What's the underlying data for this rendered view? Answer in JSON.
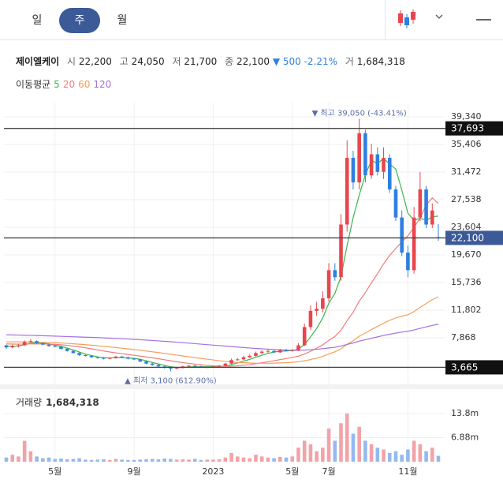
{
  "tabs": [
    "일",
    "주",
    "월"
  ],
  "active_tab": 1,
  "header": {
    "name": "제이엘케이",
    "fields": [
      {
        "label": "시",
        "value": "22,200"
      },
      {
        "label": "고",
        "value": "24,050"
      },
      {
        "label": "저",
        "value": "21,700"
      },
      {
        "label": "종",
        "value": "22,100"
      }
    ],
    "change": "▼ 500 -2.21%",
    "volume_label": "거",
    "volume": "1,684,318"
  },
  "chart_data": {
    "type": "candlestick",
    "categories": [
      null,
      null,
      null,
      null,
      null,
      null,
      null,
      null,
      "5월",
      null,
      null,
      null,
      null,
      null,
      null,
      null,
      null,
      null,
      null,
      null,
      null,
      "9월",
      null,
      null,
      null,
      null,
      null,
      null,
      null,
      null,
      null,
      null,
      null,
      null,
      "2023",
      null,
      null,
      null,
      null,
      null,
      null,
      null,
      null,
      null,
      null,
      null,
      null,
      "5월",
      null,
      null,
      null,
      null,
      null,
      "7월",
      null,
      null,
      null,
      null,
      null,
      null,
      null,
      null,
      null,
      null,
      null,
      null,
      "11월",
      null,
      null,
      null,
      null,
      null
    ],
    "open": [
      6800,
      6500,
      6700,
      6800,
      7300,
      7400,
      7100,
      6900,
      6700,
      6600,
      6300,
      6000,
      5700,
      5400,
      5300,
      5100,
      5000,
      4900,
      5000,
      5200,
      5100,
      4900,
      4800,
      4500,
      4200,
      4000,
      3800,
      3600,
      3500,
      3600,
      3800,
      3900,
      3800,
      3700,
      3700,
      3800,
      3900,
      4200,
      4700,
      4800,
      5100,
      5300,
      5700,
      5900,
      6000,
      5800,
      6100,
      6000,
      6100,
      6800,
      9400,
      11700,
      12000,
      13500,
      17500,
      16500,
      24000,
      33500,
      30000,
      37000,
      31000,
      34000,
      31500,
      33500,
      29000,
      25000,
      20000,
      17500,
      25000,
      29000,
      24000,
      22200
    ],
    "high": [
      6900,
      6900,
      7000,
      7500,
      7700,
      7500,
      7200,
      7000,
      6800,
      6700,
      6400,
      6100,
      5800,
      5500,
      5400,
      5200,
      5100,
      5100,
      5300,
      5300,
      5200,
      5000,
      4900,
      4600,
      4300,
      4100,
      3900,
      3700,
      3700,
      3900,
      4000,
      4000,
      3900,
      3800,
      3900,
      4000,
      4300,
      4900,
      5000,
      5300,
      5500,
      5900,
      6100,
      6300,
      6100,
      6300,
      6300,
      6300,
      7100,
      9900,
      12500,
      13000,
      14500,
      18500,
      18500,
      25500,
      36000,
      34500,
      39050,
      37500,
      35500,
      35000,
      35000,
      34000,
      29500,
      26000,
      21000,
      26500,
      31500,
      29500,
      27000,
      24050
    ],
    "low": [
      6300,
      6400,
      6500,
      6700,
      7200,
      7000,
      6800,
      6600,
      6500,
      6200,
      5900,
      5600,
      5300,
      5200,
      5000,
      4900,
      4800,
      4800,
      4900,
      5000,
      4800,
      4700,
      4400,
      4100,
      3900,
      3700,
      3500,
      3100,
      3400,
      3500,
      3700,
      3700,
      3600,
      3600,
      3600,
      3700,
      3800,
      4100,
      4600,
      4700,
      5000,
      5200,
      5600,
      5700,
      5700,
      5700,
      5900,
      5900,
      6000,
      6700,
      9000,
      11000,
      11500,
      13000,
      16000,
      16000,
      23000,
      29000,
      29000,
      30000,
      30500,
      31000,
      30500,
      28500,
      24500,
      19500,
      16500,
      17000,
      24500,
      23500,
      23500,
      21700
    ],
    "close": [
      6500,
      6700,
      6800,
      7300,
      7400,
      7100,
      6900,
      6700,
      6600,
      6300,
      6000,
      5700,
      5400,
      5300,
      5100,
      5000,
      4900,
      5000,
      5200,
      5100,
      4900,
      4800,
      4500,
      4200,
      4000,
      3800,
      3600,
      3500,
      3600,
      3800,
      3900,
      3800,
      3700,
      3700,
      3800,
      3900,
      4200,
      4700,
      4800,
      5100,
      5300,
      5700,
      5900,
      6000,
      5800,
      6100,
      6000,
      6100,
      6800,
      9400,
      11700,
      12000,
      13500,
      17500,
      16500,
      24000,
      33500,
      30000,
      37000,
      31000,
      34000,
      31500,
      33500,
      29000,
      25000,
      20000,
      17500,
      25000,
      29000,
      24000,
      26000,
      22100
    ],
    "up_color": "#e8464e",
    "down_color": "#2f7fe0",
    "ylim": [
      2030,
      40240
    ],
    "yticks": [
      {
        "value": 39340,
        "label": "39,340"
      },
      {
        "value": 35406,
        "label": "35,406"
      },
      {
        "value": 31472,
        "label": "31,472"
      },
      {
        "value": 27538,
        "label": "27,538"
      },
      {
        "value": 23604,
        "label": "23,604"
      },
      {
        "value": 19670,
        "label": "19,670"
      },
      {
        "value": 15736,
        "label": "15,736"
      },
      {
        "value": 11802,
        "label": "11,802"
      },
      {
        "value": 7868,
        "label": "7,868"
      }
    ],
    "grid": true,
    "price_lines": [
      {
        "value": 37693,
        "label": "37,693",
        "color": "#111111"
      },
      {
        "value": 22100,
        "label": "22,100",
        "color": "#3d5a98"
      },
      {
        "value": 3665,
        "label": "3,665",
        "color": "#111111"
      }
    ],
    "high_annotation": "▼ 최고 39,050 (-43.41%)",
    "low_annotation": "▲ 최저 3,100 (612.90%)",
    "moving_averages": {
      "label": "이동평균",
      "series": [
        {
          "name": "5",
          "color": "#3bb54a",
          "values": [
            6700,
            6650,
            6700,
            6900,
            7100,
            7150,
            7100,
            7000,
            6800,
            6650,
            6400,
            6150,
            5850,
            5550,
            5350,
            5150,
            5050,
            5000,
            5050,
            5050,
            5000,
            4950,
            4800,
            4600,
            4350,
            4150,
            3950,
            3750,
            3650,
            3650,
            3700,
            3750,
            3750,
            3750,
            3750,
            3800,
            3850,
            4050,
            4300,
            4550,
            4800,
            5100,
            5400,
            5650,
            5850,
            5950,
            6000,
            6050,
            6250,
            6900,
            8000,
            9200,
            10700,
            12800,
            14200,
            16600,
            21000,
            25000,
            28200,
            31100,
            33100,
            32700,
            33400,
            32600,
            31900,
            28900,
            25600,
            24600,
            24900,
            24600,
            25100,
            25200
          ]
        },
        {
          "name": "20",
          "color": "#f07a7a",
          "values": [
            7000,
            6980,
            6970,
            6980,
            7000,
            7000,
            6990,
            6970,
            6930,
            6880,
            6800,
            6700,
            6580,
            6450,
            6300,
            6150,
            5990,
            5850,
            5730,
            5620,
            5500,
            5380,
            5270,
            5150,
            5020,
            4890,
            4750,
            4600,
            4460,
            4340,
            4230,
            4130,
            4040,
            3950,
            3880,
            3830,
            3820,
            3840,
            3880,
            3960,
            4060,
            4180,
            4320,
            4470,
            4610,
            4770,
            4920,
            5070,
            5260,
            5560,
            5950,
            6400,
            6870,
            7500,
            8060,
            8950,
            10300,
            11500,
            13100,
            14300,
            15700,
            17000,
            18400,
            19600,
            20600,
            21500,
            22400,
            23600,
            24900,
            26800,
            27800,
            27000
          ]
        },
        {
          "name": "60",
          "color": "#f5a05a",
          "values": [
            7300,
            7300,
            7300,
            7280,
            7260,
            7240,
            7220,
            7200,
            7170,
            7130,
            7080,
            7020,
            6960,
            6890,
            6820,
            6740,
            6660,
            6570,
            6480,
            6390,
            6300,
            6200,
            6100,
            5990,
            5880,
            5770,
            5650,
            5530,
            5410,
            5290,
            5170,
            5050,
            4940,
            4830,
            4720,
            4610,
            4510,
            4430,
            4370,
            4320,
            4280,
            4250,
            4240,
            4240,
            4260,
            4290,
            4330,
            4380,
            4450,
            4600,
            4780,
            4980,
            5220,
            5560,
            5870,
            6300,
            6950,
            7450,
            8100,
            8550,
            9050,
            9500,
            9950,
            10350,
            10700,
            10950,
            11150,
            11600,
            12200,
            12750,
            13300,
            13700
          ]
        },
        {
          "name": "120",
          "color": "#a66fe0",
          "values": [
            8300,
            8280,
            8260,
            8240,
            8220,
            8200,
            8170,
            8140,
            8110,
            8080,
            8050,
            8020,
            7990,
            7960,
            7930,
            7900,
            7860,
            7820,
            7780,
            7740,
            7700,
            7650,
            7600,
            7550,
            7490,
            7430,
            7370,
            7310,
            7250,
            7180,
            7110,
            7040,
            6970,
            6900,
            6830,
            6760,
            6690,
            6620,
            6550,
            6480,
            6420,
            6360,
            6300,
            6250,
            6200,
            6160,
            6120,
            6090,
            6080,
            6120,
            6180,
            6240,
            6320,
            6430,
            6520,
            6700,
            6930,
            7130,
            7400,
            7600,
            7800,
            8000,
            8200,
            8380,
            8540,
            8680,
            8800,
            8990,
            9220,
            9430,
            9640,
            9800
          ]
        }
      ]
    },
    "volume": {
      "label": "거래량",
      "latest": "1,684,318",
      "values": [
        1200000,
        2000000,
        1500000,
        6000000,
        3000000,
        1500000,
        1000000,
        1200000,
        800000,
        900000,
        700000,
        800000,
        1000000,
        600000,
        500000,
        600000,
        700000,
        500000,
        800000,
        600000,
        500000,
        500000,
        600000,
        700000,
        800000,
        700000,
        900000,
        800000,
        600000,
        700000,
        600000,
        800000,
        500000,
        600000,
        600000,
        700000,
        1200000,
        2500000,
        1500000,
        1200000,
        1000000,
        2000000,
        1500000,
        1200000,
        1000000,
        1400000,
        1200000,
        1500000,
        4000000,
        6000000,
        5000000,
        3000000,
        4000000,
        9500000,
        6000000,
        11000000,
        13800000,
        8000000,
        10000000,
        6000000,
        5000000,
        4000000,
        3500000,
        2500000,
        3000000,
        2000000,
        3500000,
        6000000,
        5000000,
        3000000,
        4000000,
        1684318
      ],
      "up_color": "#f2a3a7",
      "down_color": "#93b9ef",
      "ylim": [
        0,
        19200000
      ],
      "yticks": [
        {
          "value": 13800000,
          "label": "13.8m"
        },
        {
          "value": 6880000,
          "label": "6.88m"
        }
      ]
    }
  }
}
